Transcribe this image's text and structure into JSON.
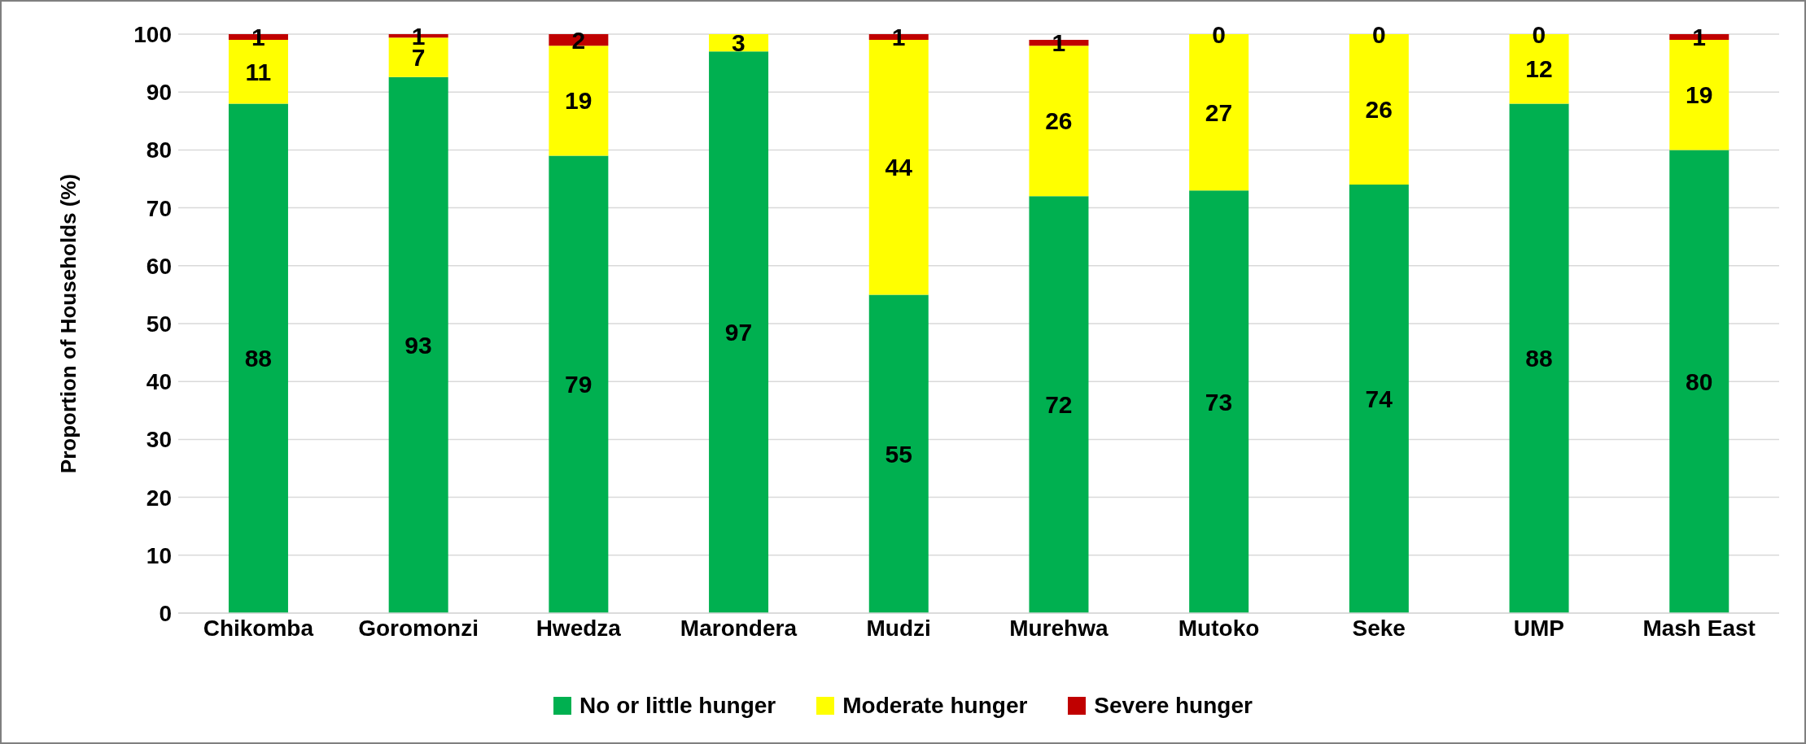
{
  "chart_data": {
    "type": "bar",
    "stacked": true,
    "ylabel": "Proportion of Households (%)",
    "categories": [
      "Chikomba",
      "Goromonzi",
      "Hwedza",
      "Marondera",
      "Mudzi",
      "Murehwa",
      "Mutoko",
      "Seke",
      "UMP",
      "Mash East"
    ],
    "series": [
      {
        "name": "No or little hunger",
        "color": "#00b050",
        "values": [
          88,
          92.6,
          79,
          97,
          55,
          72,
          73,
          74,
          88,
          80
        ],
        "value_labels": [
          "88",
          "93",
          "79",
          "97",
          "55",
          "72",
          "73",
          "74",
          "88",
          "80"
        ]
      },
      {
        "name": "Moderate hunger",
        "color": "#ffff00",
        "values": [
          11,
          6.8,
          19,
          3,
          44,
          26,
          27,
          26,
          12,
          19
        ],
        "value_labels": [
          "11",
          "7",
          "19",
          "3",
          "44",
          "26",
          "27",
          "26",
          "12",
          "19"
        ]
      },
      {
        "name": "Severe hunger",
        "color": "#c00000",
        "values": [
          1,
          0.6,
          2,
          0,
          1,
          1,
          0,
          0,
          0,
          1
        ],
        "value_labels": [
          "1",
          "1",
          "2",
          null,
          "1",
          "1",
          "0",
          "0",
          "0",
          "1"
        ]
      }
    ],
    "ylim": [
      0,
      100
    ],
    "yticks": [
      0,
      10,
      20,
      30,
      40,
      50,
      60,
      70,
      80,
      90,
      100
    ],
    "grid": "y",
    "legend": "bottom"
  }
}
